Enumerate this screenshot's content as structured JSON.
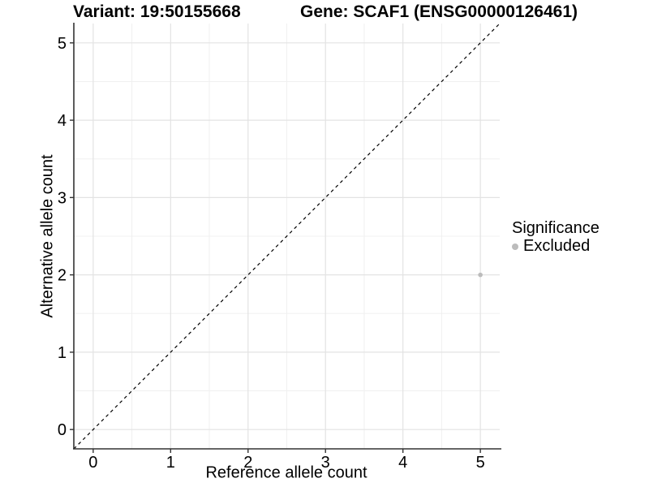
{
  "titles": {
    "left": "Variant: 19:50155668",
    "right": "Gene: SCAF1 (ENSG00000126461)"
  },
  "chart_data": {
    "type": "scatter",
    "title_left": "Variant: 19:50155668",
    "title_right": "Gene: SCAF1 (ENSG00000126461)",
    "xlabel": "Reference allele count",
    "ylabel": "Alternative allele count",
    "xlim": [
      -0.25,
      5.25
    ],
    "ylim": [
      -0.25,
      5.25
    ],
    "xticks": [
      0,
      1,
      2,
      3,
      4,
      5
    ],
    "yticks": [
      0,
      1,
      2,
      3,
      4,
      5
    ],
    "minor_ticks": [
      0.5,
      1.5,
      2.5,
      3.5,
      4.5
    ],
    "grid": true,
    "points": [
      {
        "x": 5,
        "y": 2,
        "series": "Excluded"
      }
    ],
    "identity_line": {
      "style": "dashed",
      "from": -0.25,
      "to": 5.25
    },
    "legend": {
      "title": "Significance",
      "position": "right",
      "items": [
        {
          "label": "Excluded",
          "color": "#bcbcbc"
        }
      ]
    },
    "colors": {
      "point_excluded": "#bcbcbc",
      "grid_major": "#e3e3e3",
      "grid_minor": "#f0f0f0",
      "axis": "#333333",
      "identity_line": "#000000"
    }
  }
}
